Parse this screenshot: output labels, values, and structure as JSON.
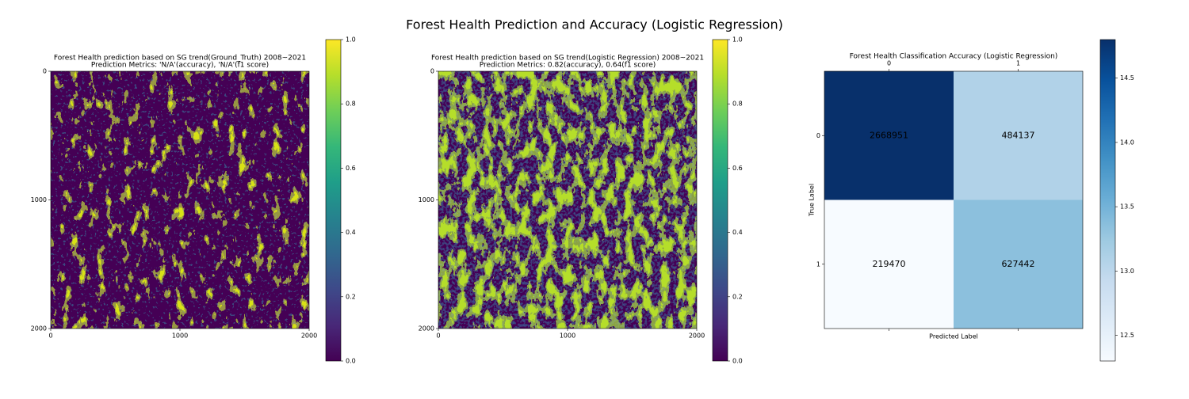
{
  "title": "Forest Health Prediction and Accuracy (Logistic Regression)",
  "chart_data": [
    {
      "type": "image",
      "title": "Forest Health prediction based on SG trend(Ground_Truth) 2008~2021",
      "subtitle": "Prediction Metrics: 'N/A'(accuracy), 'N/A'(f1 score)",
      "xlim": [
        0,
        2000
      ],
      "ylim": [
        2000,
        0
      ],
      "xticks": [
        0,
        1000,
        2000
      ],
      "yticks": [
        0,
        1000,
        2000
      ],
      "colormap": "viridis",
      "clim": [
        0,
        1
      ],
      "cticks": [
        {
          "value": 0,
          "label": "0.0"
        },
        0.2,
        0.4,
        0.6,
        0.8,
        {
          "value": 1,
          "label": "1.0"
        }
      ]
    },
    {
      "type": "image",
      "title": "Forest Health prediction based on SG trend(Logistic Regression) 2008~2021",
      "subtitle": "Prediction Metrics: 0.82(accuracy), 0.64(f1 score)",
      "xlim": [
        0,
        2000
      ],
      "ylim": [
        2000,
        0
      ],
      "xticks": [
        0,
        1000,
        2000
      ],
      "yticks": [
        0,
        1000,
        2000
      ],
      "colormap": "viridis",
      "clim": [
        0,
        1
      ],
      "cticks": [
        {
          "value": 0,
          "label": "0.0"
        },
        0.2,
        0.4,
        0.6,
        0.8,
        {
          "value": 1,
          "label": "1.0"
        }
      ]
    },
    {
      "type": "confusion",
      "title": "Forest Health Classification Accuracy (Logistic Regression)",
      "x_label": "Predicted Label",
      "y_label": "True Label",
      "x_categories": [
        "0",
        "1"
      ],
      "y_categories": [
        "0",
        "1"
      ],
      "values": [
        [
          2668951,
          484137
        ],
        [
          219470,
          627442
        ]
      ],
      "colormap": "Blues",
      "color_scale": "log",
      "clim": [
        12.3,
        14.8
      ],
      "cticks": [
        12.5,
        {
          "value": 13,
          "label": "13.0"
        },
        13.5,
        {
          "value": 14,
          "label": "14.0"
        },
        14.5
      ]
    }
  ]
}
